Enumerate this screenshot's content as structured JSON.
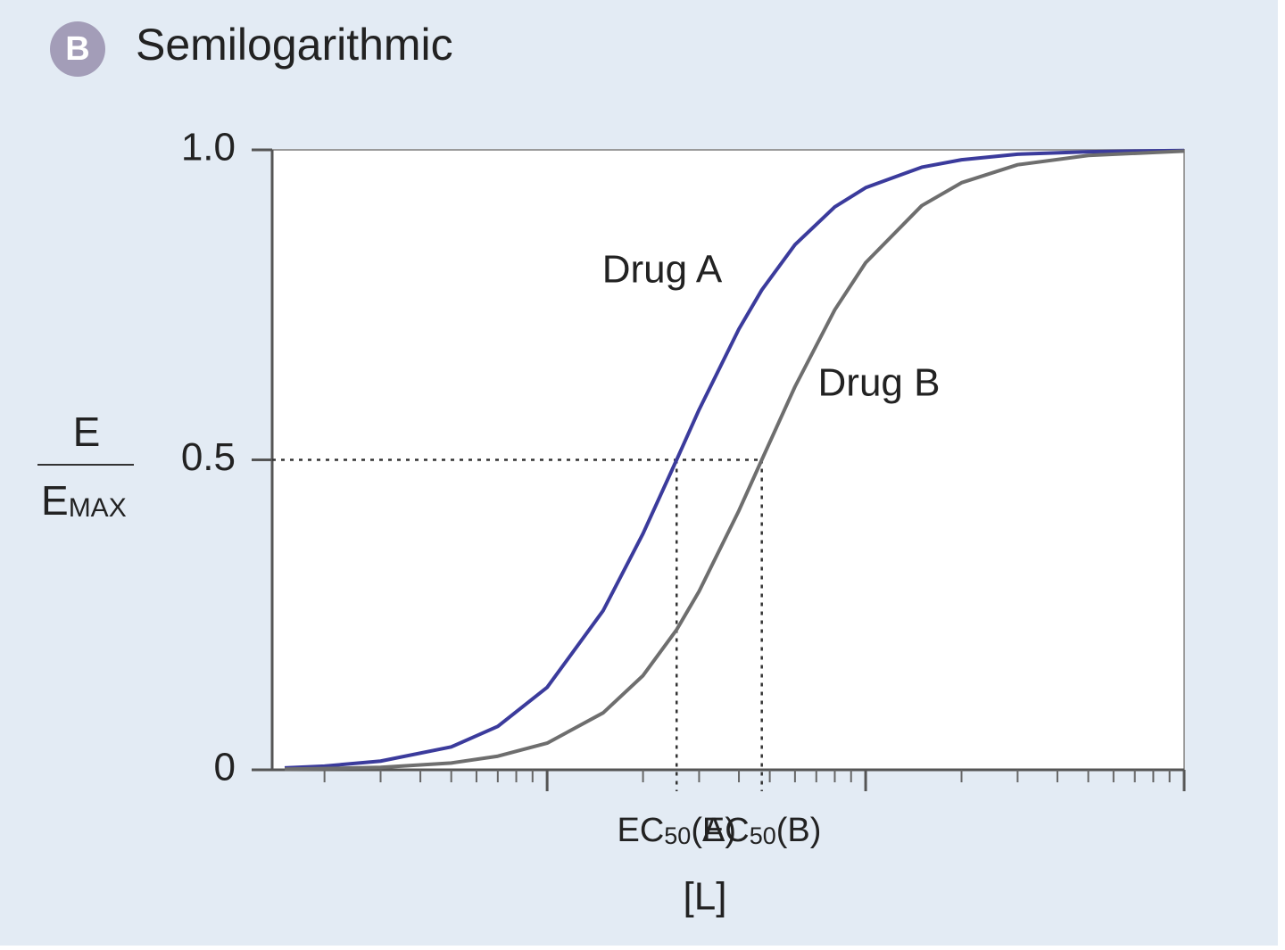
{
  "chart_data": {
    "type": "line",
    "panel_label": "B",
    "title": "Semilogarithmic",
    "ylabel": {
      "numerator": "E",
      "denominator": "EMAX"
    },
    "xlabel": "[L]",
    "xscale": "log",
    "xlim": [
      0.137,
      100
    ],
    "xticks": [
      1,
      10,
      100
    ],
    "xminorticks": [
      0.2,
      0.3,
      0.4,
      0.5,
      0.6,
      0.7,
      0.8,
      0.9,
      2,
      3,
      4,
      5,
      6,
      7,
      8,
      9,
      20,
      30,
      40,
      50,
      60,
      70,
      80,
      90
    ],
    "ylim": [
      0,
      1
    ],
    "yticks": [
      0,
      0.5,
      {
        "value": 1,
        "label": "1.0"
      }
    ],
    "x": [
      0.15,
      0.2,
      0.3,
      0.5,
      0.7,
      1,
      1.5,
      2,
      2.55,
      3,
      4,
      4.72,
      6,
      8,
      10,
      15,
      20,
      30,
      50,
      100
    ],
    "series": [
      {
        "name": "Drug A",
        "color": "#3b3b9c",
        "values": [
          0.003,
          0.006,
          0.014,
          0.037,
          0.07,
          0.133,
          0.257,
          0.381,
          0.5,
          0.581,
          0.711,
          0.774,
          0.847,
          0.908,
          0.939,
          0.972,
          0.984,
          0.993,
          0.997,
          0.999
        ]
      },
      {
        "name": "Drug B",
        "color": "#6e6e6e",
        "values": [
          0.001,
          0.002,
          0.004,
          0.011,
          0.022,
          0.043,
          0.092,
          0.152,
          0.226,
          0.288,
          0.418,
          0.5,
          0.618,
          0.742,
          0.818,
          0.91,
          0.947,
          0.976,
          0.991,
          0.998
        ]
      }
    ],
    "annotations": [
      {
        "text": "EC50(A)",
        "x": 2.55,
        "y": 0.5
      },
      {
        "text": "EC50(B)",
        "x": 4.72,
        "y": 0.5
      }
    ]
  }
}
